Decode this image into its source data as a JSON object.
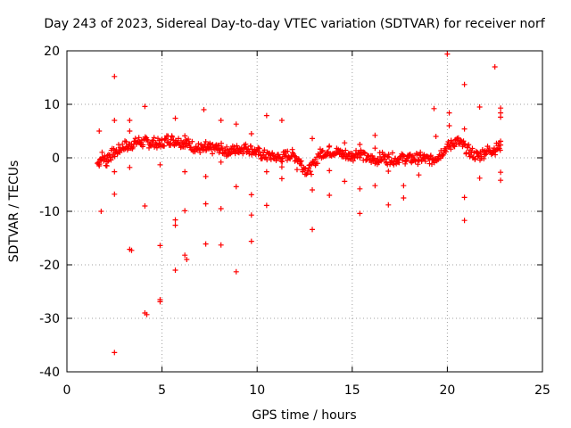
{
  "chart_data": {
    "type": "scatter",
    "title": "Day 243 of 2023, Sidereal Day-to-day VTEC variation (SDTVAR) for receiver norf",
    "xlabel": "GPS time / hours",
    "ylabel": "SDTVAR / TECUs",
    "xlim": [
      0,
      25
    ],
    "ylim": [
      -40,
      20
    ],
    "xticks": [
      0,
      5,
      10,
      15,
      20,
      25
    ],
    "yticks": [
      -40,
      -30,
      -20,
      -10,
      0,
      10,
      20
    ],
    "xtick_labels": [
      "0",
      "5",
      "10",
      "15",
      "20",
      "25"
    ],
    "ytick_labels": [
      "-40",
      "-30",
      "-20",
      "-10",
      "0",
      "10",
      "20"
    ],
    "grid": true,
    "marker": "+",
    "color": "#ff0000",
    "band": [
      [
        1.6,
        -1.0
      ],
      [
        1.8,
        0.2
      ],
      [
        2.0,
        -0.5
      ],
      [
        2.2,
        0.5
      ],
      [
        2.4,
        0.8
      ],
      [
        2.6,
        1.2
      ],
      [
        2.8,
        1.8
      ],
      [
        3.0,
        2.2
      ],
      [
        3.2,
        2.0
      ],
      [
        3.4,
        2.6
      ],
      [
        3.6,
        2.9
      ],
      [
        3.8,
        3.1
      ],
      [
        4.0,
        2.8
      ],
      [
        4.2,
        3.0
      ],
      [
        4.4,
        2.7
      ],
      [
        4.6,
        2.8
      ],
      [
        4.8,
        2.4
      ],
      [
        5.0,
        2.8
      ],
      [
        5.2,
        3.3
      ],
      [
        5.4,
        3.4
      ],
      [
        5.6,
        3.3
      ],
      [
        5.8,
        3.2
      ],
      [
        6.0,
        3.0
      ],
      [
        6.2,
        2.8
      ],
      [
        6.4,
        2.4
      ],
      [
        6.6,
        2.1
      ],
      [
        6.8,
        1.8
      ],
      [
        7.0,
        1.6
      ],
      [
        7.2,
        1.5
      ],
      [
        7.4,
        1.6
      ],
      [
        7.6,
        1.7
      ],
      [
        7.8,
        1.8
      ],
      [
        8.0,
        1.7
      ],
      [
        8.2,
        1.5
      ],
      [
        8.4,
        1.3
      ],
      [
        8.6,
        1.2
      ],
      [
        8.8,
        1.5
      ],
      [
        9.0,
        1.7
      ],
      [
        9.2,
        1.8
      ],
      [
        9.4,
        1.9
      ],
      [
        9.6,
        1.7
      ],
      [
        9.8,
        1.4
      ],
      [
        10.0,
        0.9
      ],
      [
        10.2,
        0.5
      ],
      [
        10.4,
        0.4
      ],
      [
        10.6,
        0.4
      ],
      [
        10.8,
        0.2
      ],
      [
        11.0,
        0.1
      ],
      [
        11.2,
        0.0
      ],
      [
        11.4,
        0.2
      ],
      [
        11.6,
        0.6
      ],
      [
        11.8,
        0.5
      ],
      [
        12.0,
        0.3
      ],
      [
        12.2,
        -0.5
      ],
      [
        12.4,
        -1.8
      ],
      [
        12.6,
        -2.4
      ],
      [
        12.8,
        -2.0
      ],
      [
        13.0,
        -1.2
      ],
      [
        13.2,
        0.5
      ],
      [
        13.4,
        0.9
      ],
      [
        13.6,
        1.0
      ],
      [
        13.8,
        1.1
      ],
      [
        14.0,
        1.2
      ],
      [
        14.2,
        1.0
      ],
      [
        14.4,
        0.8
      ],
      [
        14.6,
        0.6
      ],
      [
        14.8,
        0.3
      ],
      [
        15.0,
        0.4
      ],
      [
        15.2,
        1.0
      ],
      [
        15.4,
        0.8
      ],
      [
        15.6,
        0.3
      ],
      [
        15.8,
        -0.2
      ],
      [
        16.0,
        -0.3
      ],
      [
        16.2,
        -0.4
      ],
      [
        16.4,
        -0.1
      ],
      [
        16.6,
        0.1
      ],
      [
        16.8,
        -0.2
      ],
      [
        17.0,
        -0.1
      ],
      [
        17.2,
        -0.3
      ],
      [
        17.4,
        -0.2
      ],
      [
        17.6,
        0.0
      ],
      [
        17.8,
        -0.1
      ],
      [
        18.0,
        -0.2
      ],
      [
        18.2,
        -0.1
      ],
      [
        18.4,
        -0.1
      ],
      [
        18.6,
        0.0
      ],
      [
        18.8,
        -0.2
      ],
      [
        19.0,
        -0.4
      ],
      [
        19.2,
        -0.3
      ],
      [
        19.4,
        0.2
      ],
      [
        19.6,
        0.8
      ],
      [
        19.8,
        1.5
      ],
      [
        20.0,
        2.0
      ],
      [
        20.2,
        2.6
      ],
      [
        20.4,
        3.1
      ],
      [
        20.6,
        2.8
      ],
      [
        20.8,
        2.3
      ],
      [
        21.0,
        1.6
      ],
      [
        21.2,
        1.0
      ],
      [
        21.4,
        0.5
      ],
      [
        21.6,
        0.3
      ],
      [
        21.8,
        0.8
      ],
      [
        22.0,
        1.2
      ],
      [
        22.2,
        1.4
      ],
      [
        22.4,
        1.6
      ],
      [
        22.6,
        1.8
      ],
      [
        22.8,
        2.4
      ]
    ],
    "outliers": [
      [
        1.7,
        5.0
      ],
      [
        1.7,
        -1.5
      ],
      [
        1.8,
        -10.0
      ],
      [
        2.1,
        -1.5
      ],
      [
        2.5,
        15.2
      ],
      [
        2.5,
        7.0
      ],
      [
        2.5,
        -2.6
      ],
      [
        2.5,
        -6.8
      ],
      [
        2.5,
        -36.4
      ],
      [
        3.3,
        7.0
      ],
      [
        3.3,
        5.0
      ],
      [
        3.3,
        -1.8
      ],
      [
        3.3,
        -17.1
      ],
      [
        3.4,
        -17.3
      ],
      [
        4.1,
        9.6
      ],
      [
        4.1,
        -9.0
      ],
      [
        4.1,
        -29.0
      ],
      [
        4.2,
        -29.3
      ],
      [
        4.9,
        -1.3
      ],
      [
        4.9,
        -16.4
      ],
      [
        4.9,
        -26.5
      ],
      [
        4.9,
        -26.9
      ],
      [
        5.7,
        7.4
      ],
      [
        5.7,
        -11.6
      ],
      [
        5.7,
        -12.6
      ],
      [
        5.7,
        -21.0
      ],
      [
        6.2,
        4.1
      ],
      [
        6.2,
        -2.6
      ],
      [
        6.2,
        -9.9
      ],
      [
        6.2,
        -18.2
      ],
      [
        6.3,
        -19.0
      ],
      [
        7.2,
        9.0
      ],
      [
        7.3,
        3.0
      ],
      [
        7.3,
        -3.5
      ],
      [
        7.3,
        -8.6
      ],
      [
        7.3,
        -16.1
      ],
      [
        8.1,
        7.0
      ],
      [
        8.1,
        -0.8
      ],
      [
        8.1,
        -9.5
      ],
      [
        8.1,
        -16.3
      ],
      [
        8.9,
        6.3
      ],
      [
        8.9,
        -5.4
      ],
      [
        8.9,
        -21.3
      ],
      [
        9.7,
        4.5
      ],
      [
        9.7,
        -6.9
      ],
      [
        9.7,
        -10.7
      ],
      [
        9.7,
        -15.6
      ],
      [
        10.5,
        7.9
      ],
      [
        10.5,
        -2.6
      ],
      [
        10.5,
        -8.9
      ],
      [
        11.3,
        7.0
      ],
      [
        11.3,
        -1.7
      ],
      [
        11.3,
        -3.9
      ],
      [
        12.1,
        -2.2
      ],
      [
        12.9,
        3.6
      ],
      [
        12.9,
        -6.0
      ],
      [
        12.9,
        -13.4
      ],
      [
        13.8,
        2.2
      ],
      [
        13.8,
        -2.4
      ],
      [
        13.8,
        -7.0
      ],
      [
        14.6,
        2.8
      ],
      [
        14.6,
        -4.4
      ],
      [
        15.4,
        2.5
      ],
      [
        15.4,
        -5.8
      ],
      [
        15.4,
        -10.4
      ],
      [
        16.2,
        4.2
      ],
      [
        16.2,
        1.8
      ],
      [
        16.2,
        -5.2
      ],
      [
        16.9,
        -2.5
      ],
      [
        16.9,
        -8.8
      ],
      [
        17.7,
        -5.2
      ],
      [
        17.7,
        -7.5
      ],
      [
        18.5,
        -3.2
      ],
      [
        19.3,
        9.2
      ],
      [
        19.4,
        4.0
      ],
      [
        20.0,
        19.4
      ],
      [
        20.1,
        8.4
      ],
      [
        20.1,
        6.0
      ],
      [
        20.9,
        13.7
      ],
      [
        20.9,
        5.4
      ],
      [
        20.9,
        -7.4
      ],
      [
        20.9,
        -11.7
      ],
      [
        21.7,
        9.5
      ],
      [
        21.7,
        -3.8
      ],
      [
        22.5,
        17.0
      ],
      [
        22.8,
        9.3
      ],
      [
        22.8,
        8.4
      ],
      [
        22.8,
        7.6
      ],
      [
        22.8,
        3.1
      ],
      [
        22.8,
        -2.7
      ],
      [
        22.8,
        -4.2
      ]
    ]
  }
}
